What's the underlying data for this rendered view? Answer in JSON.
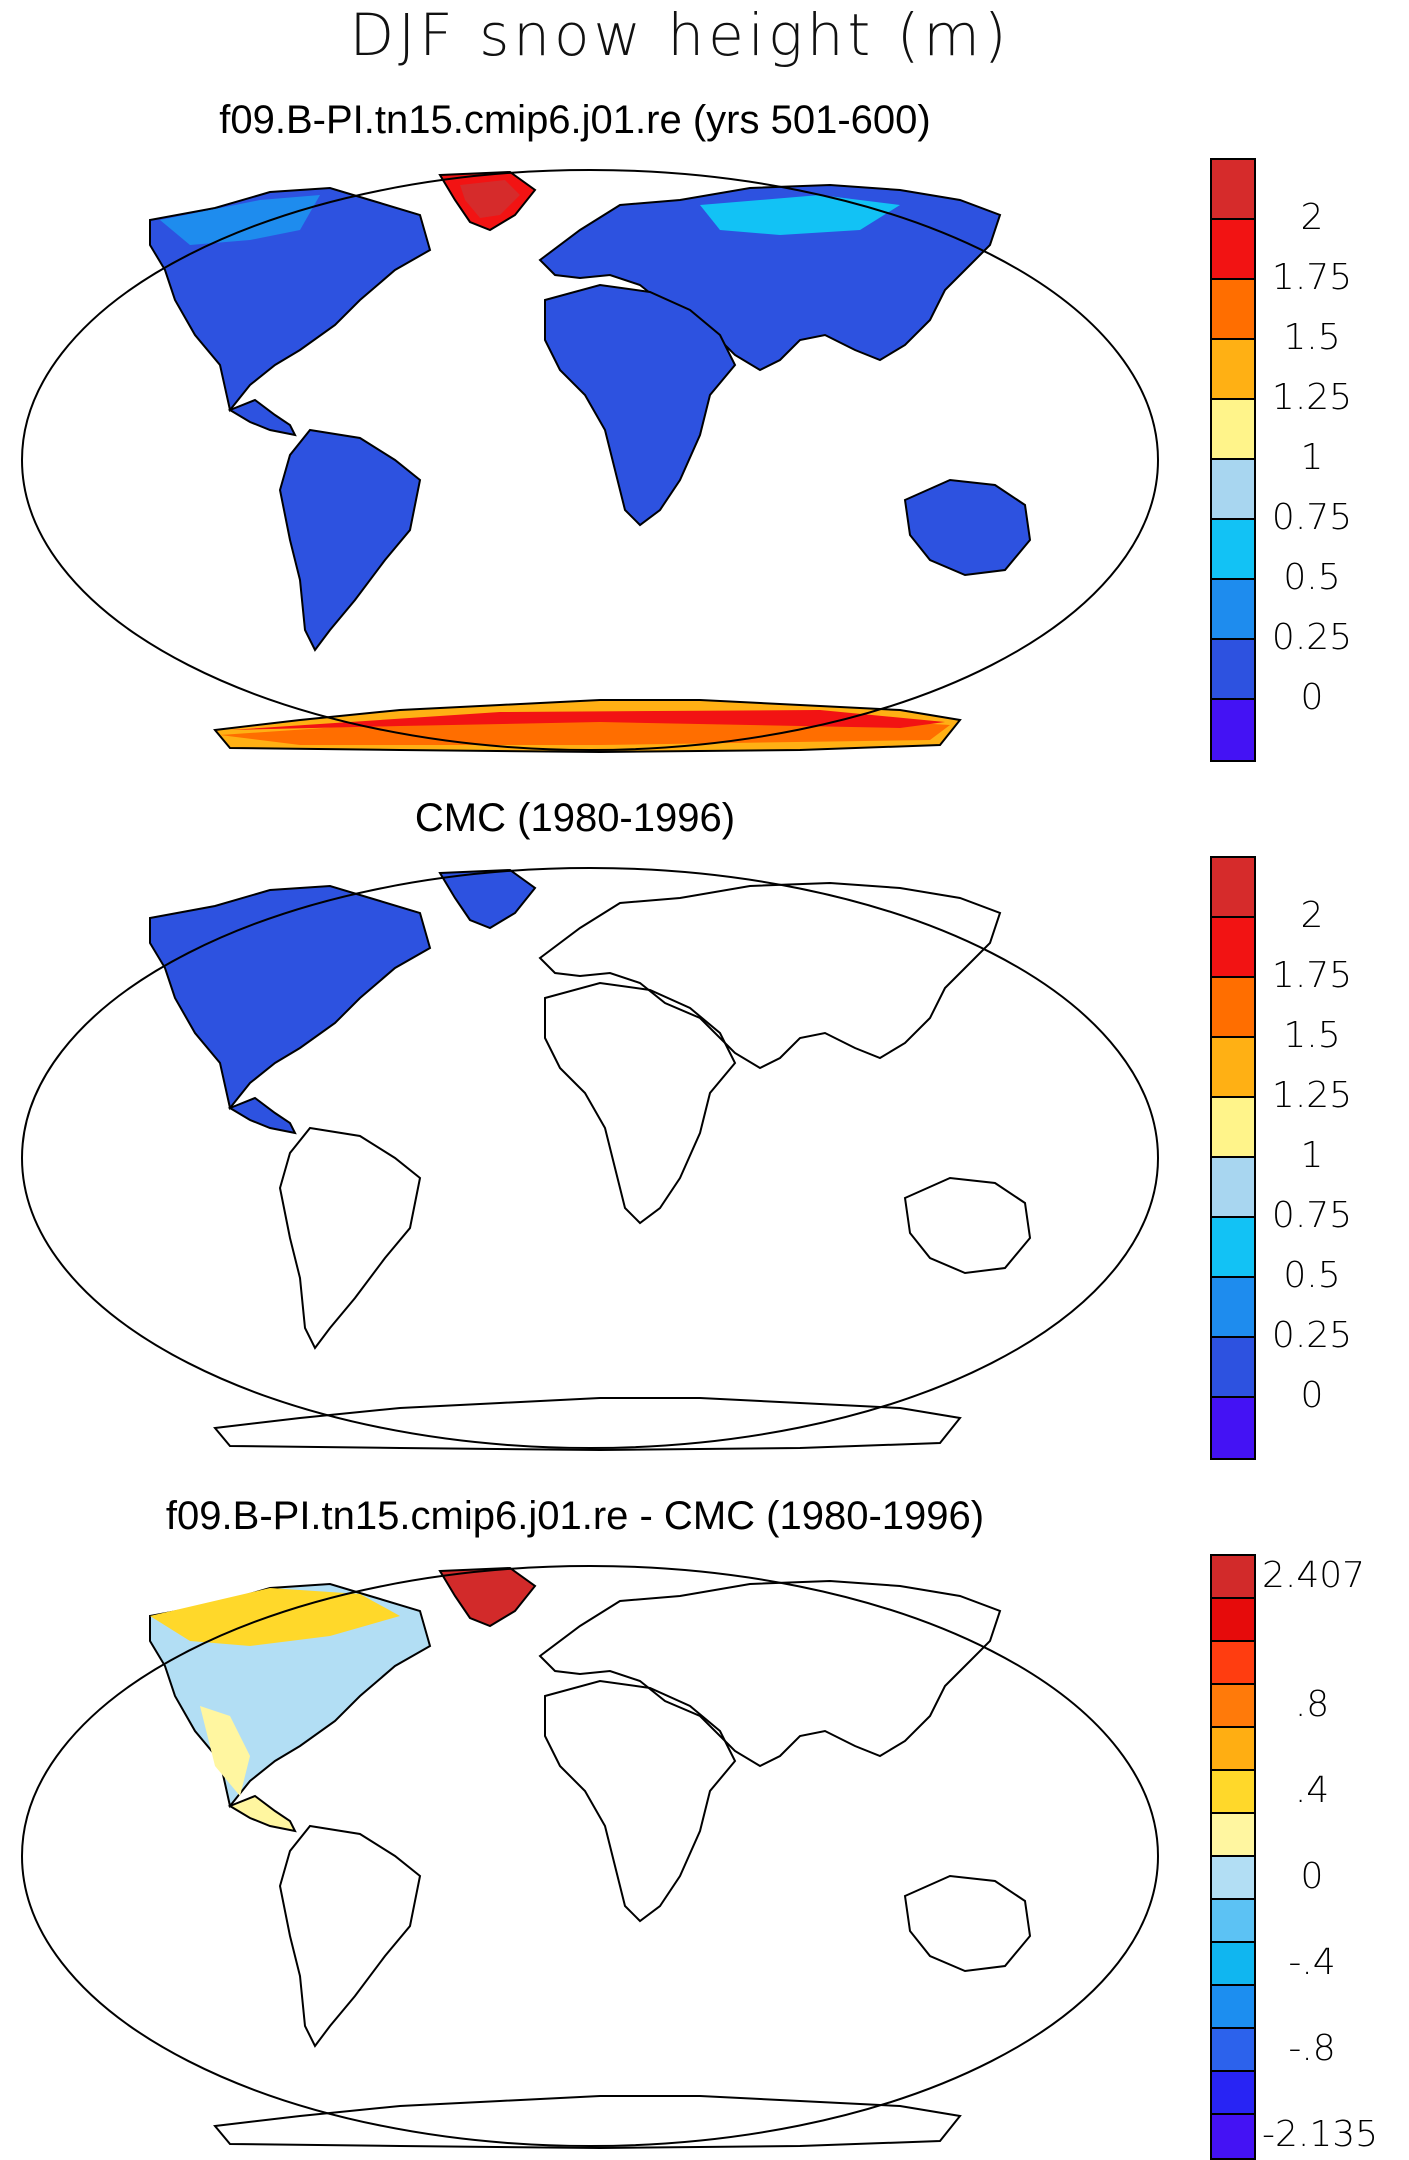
{
  "title": "DJF snow height (m)",
  "panels": [
    {
      "title": "f09.B-PI.tn15.cmip6.j01.re (yrs 501-600)",
      "colorbar": {
        "colors": [
          "#d62b2b",
          "#f21313",
          "#ff6e00",
          "#ffb014",
          "#fff48a",
          "#a8d6f0",
          "#12c2f5",
          "#1e8cee",
          "#2d52e0",
          "#4412f4"
        ],
        "labels": [
          "2",
          "1.75",
          "1.5",
          "1.25",
          "1",
          "0.75",
          "0.5",
          "0.25",
          "0"
        ]
      }
    },
    {
      "title": "CMC (1980-1996)",
      "colorbar": {
        "colors": [
          "#d62b2b",
          "#f21313",
          "#ff6e00",
          "#ffb014",
          "#fff48a",
          "#a8d6f0",
          "#12c2f5",
          "#1e8cee",
          "#2d52e0",
          "#4412f4"
        ],
        "labels": [
          "2",
          "1.75",
          "1.5",
          "1.25",
          "1",
          "0.75",
          "0.5",
          "0.25",
          "0"
        ]
      }
    },
    {
      "title": "f09.B-PI.tn15.cmip6.j01.re - CMC (1980-1996)",
      "colorbar": {
        "colors": [
          "#d22a2a",
          "#e60b0b",
          "#ff3d10",
          "#ff7a0a",
          "#ffae12",
          "#ffd82a",
          "#fff6a0",
          "#b2def4",
          "#5cc2f4",
          "#10b6f0",
          "#1c8ef0",
          "#2c62ec",
          "#2824f4",
          "#4412f4"
        ],
        "labels": [
          "2.407",
          "",
          "",
          ".8",
          "",
          ".4",
          "",
          "0",
          "",
          "-.4",
          "",
          "-.8",
          "",
          "-2.135"
        ]
      }
    }
  ],
  "map_colors": {
    "land_low": "#2d52e0",
    "land_mid": "#1e8cee",
    "land_light": "#12c2f5",
    "greenland_high": "#d62b2b",
    "greenland_red": "#f21313",
    "antarctic_orange": "#ff6e00",
    "antarctic_yellow": "#ffb014",
    "diff_pos_small": "#fff6a0",
    "diff_neg_small": "#b2def4",
    "diff_pos_mid": "#ffd82a",
    "diff_high": "#d22a2a",
    "coast": "#000000"
  }
}
